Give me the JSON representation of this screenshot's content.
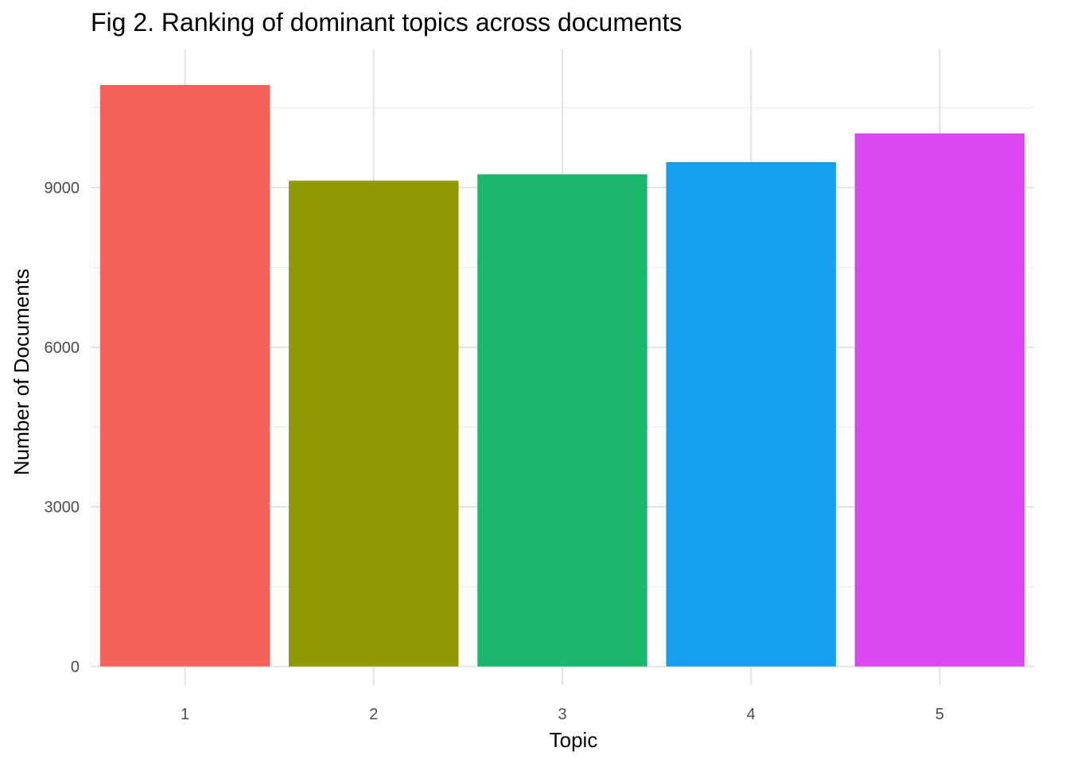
{
  "chart_data": {
    "type": "bar",
    "title": "Fig 2. Ranking of dominant topics across documents",
    "xlabel": "Topic",
    "ylabel": "Number of Documents",
    "categories": [
      "1",
      "2",
      "3",
      "4",
      "5"
    ],
    "values": [
      10930,
      9130,
      9250,
      9480,
      10020
    ],
    "colors": [
      "#F8766D",
      "#A3A500",
      "#00BF7D",
      "#00B0F6",
      "#E76BF3"
    ],
    "bar_fill_colors": [
      "#F4625B",
      "#929804",
      "#1BB76D",
      "#169FF0",
      "#DD47F2"
    ],
    "yticks": [
      0,
      3000,
      6000,
      9000
    ],
    "ytick_labels": [
      "0",
      "3000",
      "6000",
      "9000"
    ],
    "ylim": [
      -350,
      11600
    ],
    "grid": true,
    "legend": "none"
  }
}
